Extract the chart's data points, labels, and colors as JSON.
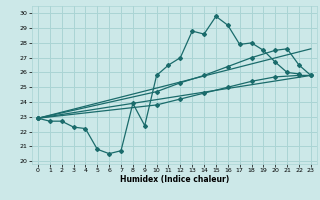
{
  "xlabel": "Humidex (Indice chaleur)",
  "background_color": "#cce8e8",
  "grid_color": "#aad4d4",
  "line_color": "#1a6b6b",
  "xlim": [
    -0.5,
    23.5
  ],
  "ylim": [
    19.8,
    30.5
  ],
  "yticks": [
    20,
    21,
    22,
    23,
    24,
    25,
    26,
    27,
    28,
    29,
    30
  ],
  "xticks": [
    0,
    1,
    2,
    3,
    4,
    5,
    6,
    7,
    8,
    9,
    10,
    11,
    12,
    13,
    14,
    15,
    16,
    17,
    18,
    19,
    20,
    21,
    22,
    23
  ],
  "line1_x": [
    0,
    1,
    2,
    3,
    4,
    5,
    6,
    7,
    8,
    9,
    10,
    11,
    12,
    13,
    14,
    15,
    16,
    17,
    18,
    19,
    20,
    21,
    22
  ],
  "line1_y": [
    22.9,
    22.7,
    22.7,
    22.3,
    22.2,
    20.8,
    20.5,
    20.7,
    23.9,
    22.4,
    25.8,
    26.5,
    27.0,
    28.8,
    28.6,
    29.8,
    29.2,
    27.9,
    28.0,
    27.5,
    26.7,
    26.0,
    25.9
  ],
  "line2_x": [
    0,
    23
  ],
  "line2_y": [
    22.9,
    27.6
  ],
  "line2_markers_x": [
    0,
    10,
    12,
    14,
    16,
    18,
    20,
    21,
    22,
    23
  ],
  "line2_markers_y": [
    22.9,
    24.7,
    25.3,
    25.8,
    26.4,
    27.0,
    27.5,
    27.6,
    26.5,
    25.8
  ],
  "line3_x": [
    0,
    23
  ],
  "line3_y": [
    22.9,
    25.8
  ],
  "line3_markers_x": [
    0,
    10,
    12,
    14,
    16,
    18,
    20,
    22,
    23
  ],
  "line3_markers_y": [
    22.9,
    23.8,
    24.2,
    24.6,
    25.0,
    25.4,
    25.7,
    25.8,
    25.8
  ]
}
